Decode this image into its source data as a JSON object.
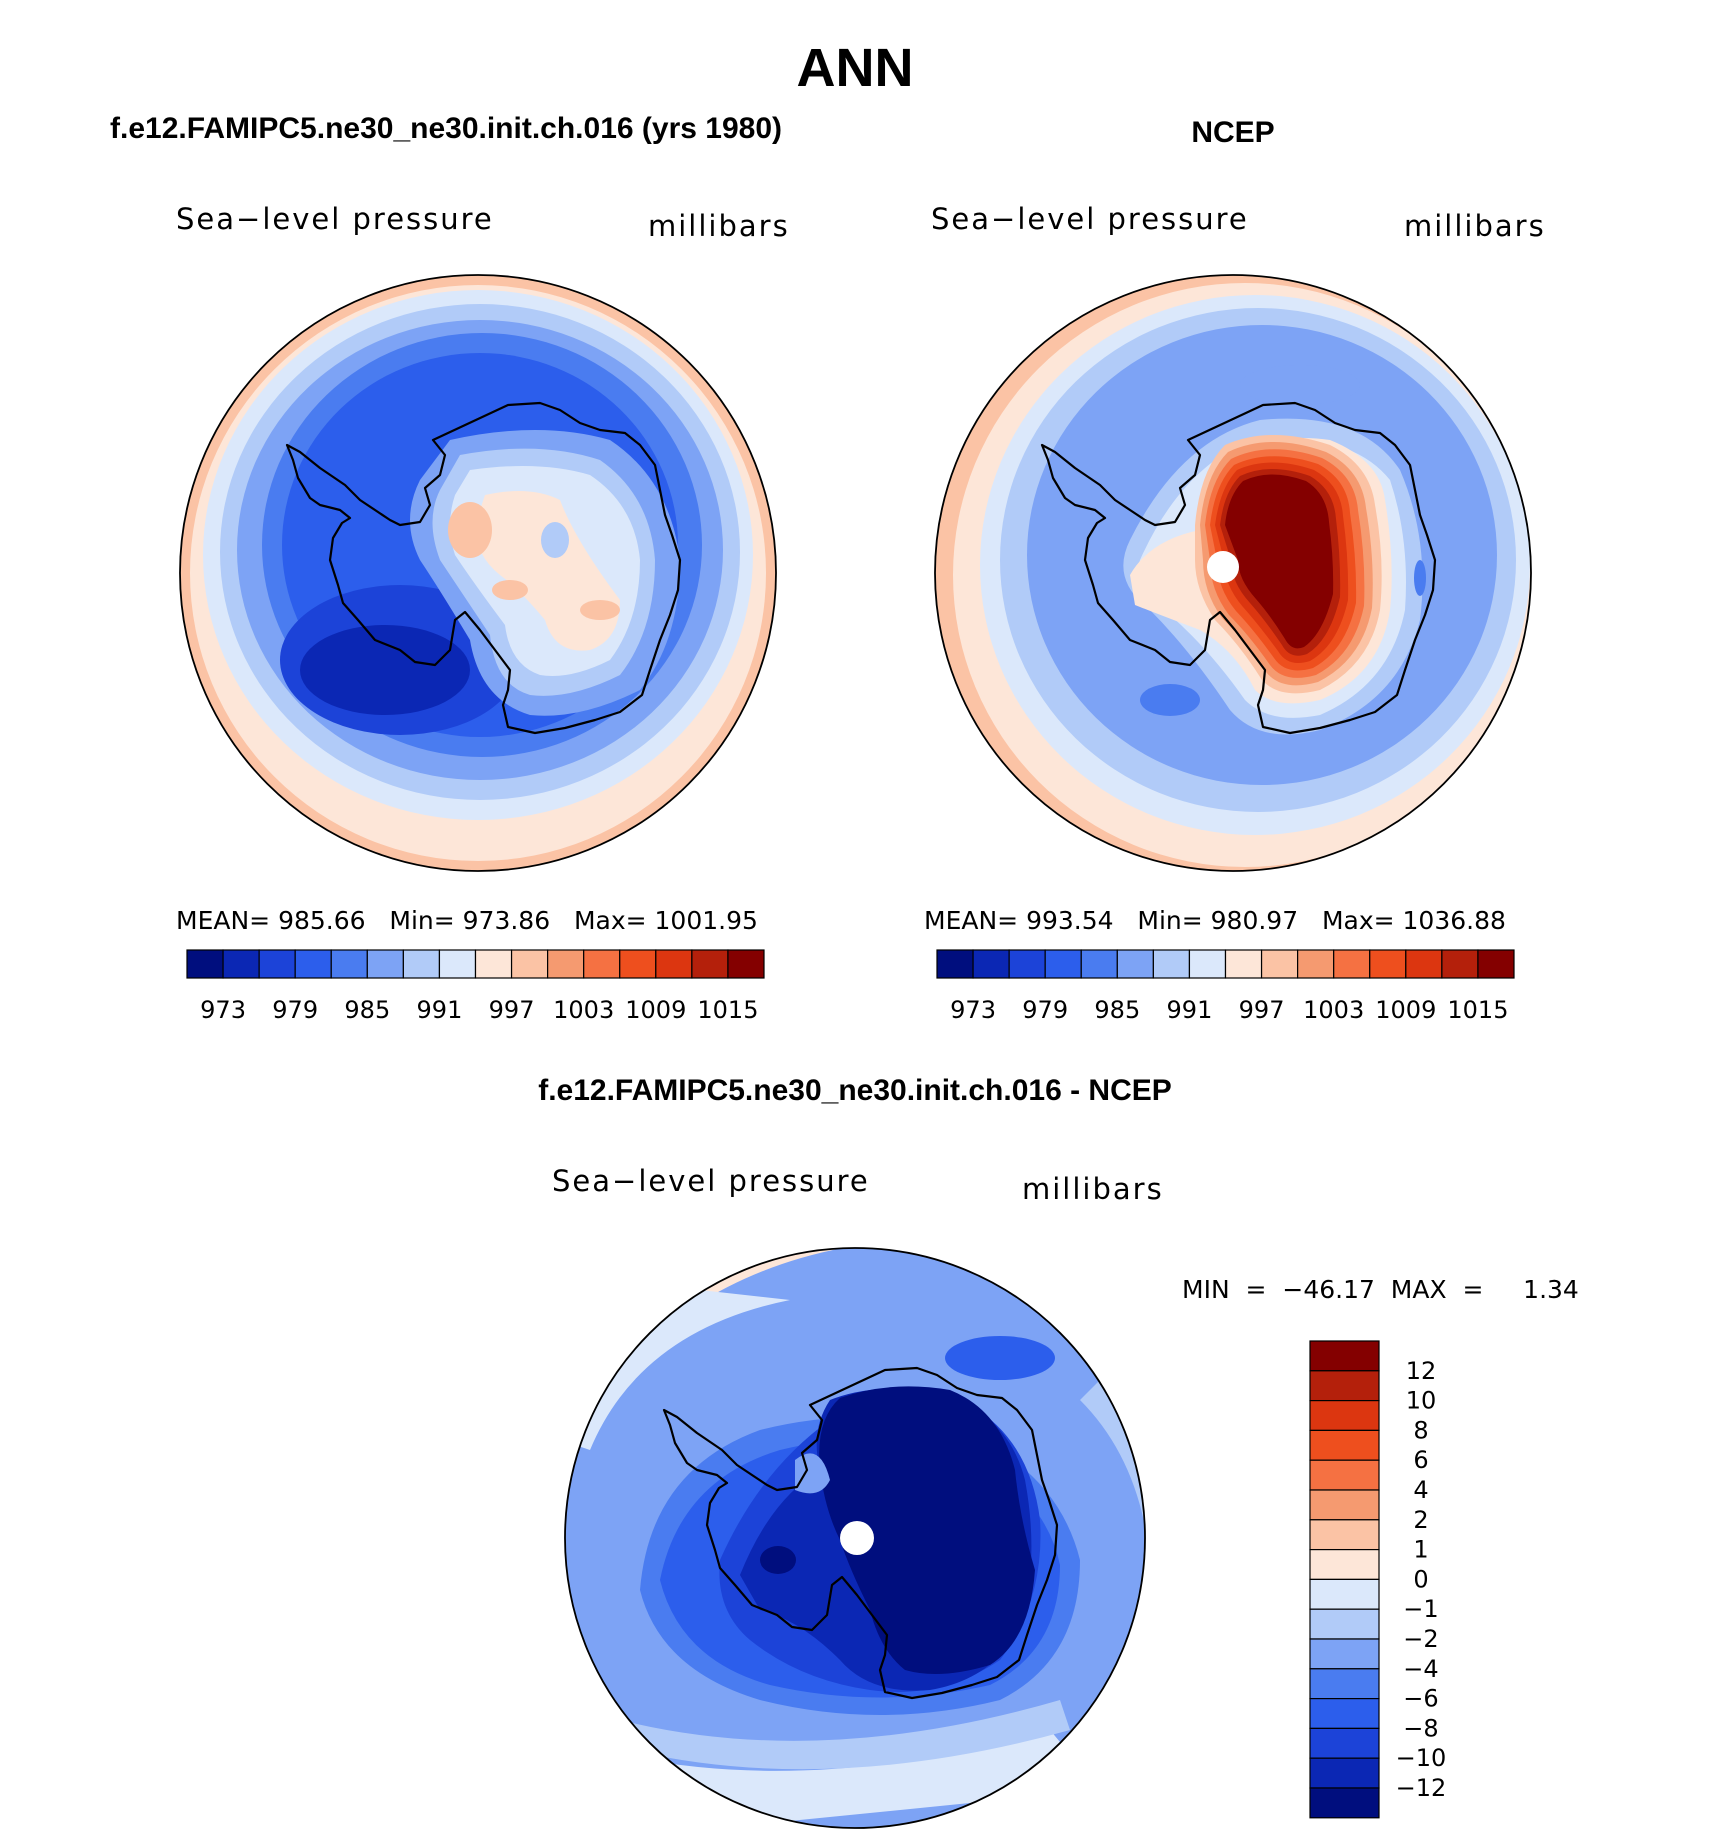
{
  "title": "ANN",
  "colors": {
    "abs": [
      "#000e7e",
      "#0b27b4",
      "#1c43d8",
      "#2c5eec",
      "#4a7cf0",
      "#7da3f5",
      "#b1cbf8",
      "#dbe8fb",
      "#fde6d8",
      "#fbc3a5",
      "#f59a70",
      "#f57142",
      "#ee4f1e",
      "#dc3610",
      "#b4200b",
      "#840000"
    ],
    "diff": [
      "#840000",
      "#b4200b",
      "#dc3610",
      "#ee4f1e",
      "#f57142",
      "#f59a70",
      "#fbc3a5",
      "#fde6d8",
      "#dbe8fb",
      "#b1cbf8",
      "#7da3f5",
      "#4a7cf0",
      "#2c5eec",
      "#1c43d8",
      "#0b27b4",
      "#000e7e"
    ]
  },
  "panels": [
    {
      "header": "f.e12.FAMIPC5.ne30_ne30.init.ch.016 (yrs 1980)",
      "left_label": "Sea−level pressure",
      "right_label": "millibars",
      "stats": "MEAN= 985.66   Min= 973.86   Max= 1001.95",
      "colorbar_labels": [
        "973",
        "979",
        "985",
        "991",
        "997",
        "1003",
        "1009",
        "1015"
      ]
    },
    {
      "header": "NCEP",
      "left_label": "Sea−level pressure",
      "right_label": "millibars",
      "stats": "MEAN= 993.54   Min= 980.97   Max= 1036.88",
      "colorbar_labels": [
        "973",
        "979",
        "985",
        "991",
        "997",
        "1003",
        "1009",
        "1015"
      ]
    },
    {
      "header": "f.e12.FAMIPC5.ne30_ne30.init.ch.016 - NCEP",
      "left_label": "Sea−level pressure",
      "right_label": "millibars",
      "stats": "MIN  =  −46.17  MAX  =     1.34",
      "colorbar_labels": [
        "12",
        "10",
        "8",
        "6",
        "4",
        "2",
        "1",
        "0",
        "−1",
        "−2",
        "−4",
        "−6",
        "−8",
        "−10",
        "−12"
      ]
    }
  ]
}
